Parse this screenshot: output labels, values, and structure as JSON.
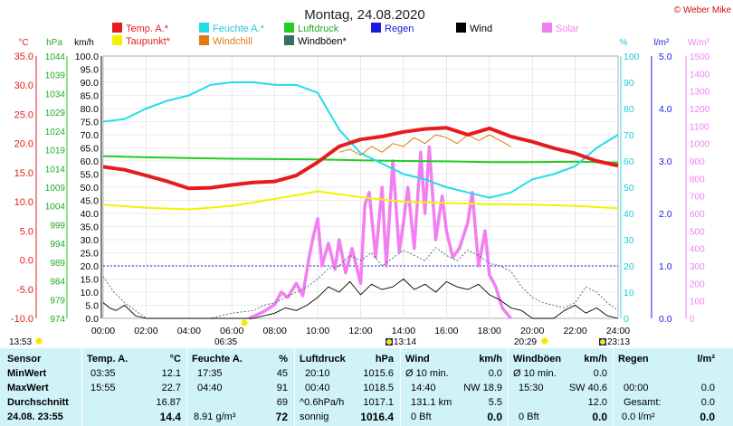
{
  "header": {
    "title": "Montag, 24.08.2020",
    "copyright": "© Weber Mike"
  },
  "legend": [
    {
      "label": "Temp. A.*",
      "color": "#e61c1c"
    },
    {
      "label": "Feuchte A.*",
      "color": "#22dde8"
    },
    {
      "label": "Luftdruck",
      "color": "#22cc22"
    },
    {
      "label": "Regen",
      "color": "#1a1ae0"
    },
    {
      "label": "Wind",
      "color": "#000000"
    },
    {
      "label": "Solar",
      "color": "#f27ff2"
    },
    {
      "label": "Taupunkt*",
      "color": "#f2f200"
    },
    {
      "label": "Windchill",
      "color": "#e07a10"
    },
    {
      "label": "Windböen*",
      "color": "#3a6a6a"
    }
  ],
  "axis_units": {
    "temp": "°C",
    "pressure": "hPa",
    "wind": "km/h",
    "humidity": "%",
    "rain": "l/m²",
    "solar": "W/m²"
  },
  "chart_data": {
    "type": "line",
    "x_ticks": [
      "00:00",
      "02:00",
      "04:00",
      "06:00",
      "08:00",
      "10:00",
      "12:00",
      "14:00",
      "16:00",
      "18:00",
      "20:00",
      "22:00",
      "24:00"
    ],
    "x_range_hours": [
      0,
      24
    ],
    "axes": {
      "temp": {
        "ticks": [
          "35.0",
          "30.0",
          "25.0",
          "20.0",
          "15.0",
          "10.0",
          "5.0",
          "0.0",
          "-5.0",
          "-10.0"
        ],
        "range": [
          -10,
          35
        ]
      },
      "pressure": {
        "ticks": [
          "1044",
          "1039",
          "1034",
          "1029",
          "1024",
          "1019",
          "1014",
          "1009",
          "1004",
          "999",
          "994",
          "989",
          "984",
          "979",
          "974"
        ],
        "range": [
          974,
          1044
        ]
      },
      "wind": {
        "ticks": [
          "100.0",
          "95.0",
          "90.0",
          "85.0",
          "80.0",
          "75.0",
          "70.0",
          "65.0",
          "60.0",
          "55.0",
          "50.0",
          "45.0",
          "40.0",
          "35.0",
          "30.0",
          "25.0",
          "20.0",
          "15.0",
          "10.0",
          "5.0",
          "0.0"
        ],
        "range": [
          0,
          100
        ]
      },
      "humidity": {
        "ticks": [
          "100",
          "90",
          "80",
          "70",
          "60",
          "50",
          "40",
          "30",
          "20",
          "10",
          "0"
        ],
        "range": [
          0,
          100
        ]
      },
      "rain": {
        "ticks": [
          "5.0",
          "4.0",
          "3.0",
          "2.0",
          "1.0",
          "0.0"
        ],
        "range": [
          0,
          5
        ]
      },
      "solar": {
        "ticks": [
          "1500",
          "1400",
          "1300",
          "1200",
          "1100",
          "1000",
          "900",
          "800",
          "700",
          "600",
          "500",
          "400",
          "300",
          "200",
          "100",
          "0"
        ],
        "range": [
          0,
          1500
        ]
      }
    },
    "grid": true,
    "series": [
      {
        "name": "Temp. A.*",
        "axis": "temp",
        "color": "#e61c1c",
        "x": [
          0,
          1,
          2,
          3,
          4,
          5,
          6,
          7,
          8,
          9,
          10,
          11,
          12,
          13,
          14,
          15,
          16,
          17,
          18,
          19,
          20,
          21,
          22,
          23,
          24
        ],
        "y": [
          16.0,
          15.5,
          14.5,
          13.5,
          12.3,
          12.4,
          12.9,
          13.3,
          13.5,
          14.5,
          16.8,
          19.5,
          20.7,
          21.2,
          22.0,
          22.5,
          22.7,
          21.5,
          22.6,
          21.2,
          20.3,
          19.2,
          18.3,
          17.0,
          16.2
        ]
      },
      {
        "name": "Feuchte A.*",
        "axis": "humidity",
        "color": "#22dde8",
        "x": [
          0,
          1,
          2,
          3,
          4,
          5,
          6,
          7,
          8,
          9,
          10,
          11,
          12,
          13,
          14,
          15,
          16,
          17,
          18,
          19,
          20,
          21,
          22,
          23,
          24
        ],
        "y": [
          75,
          76,
          80,
          83,
          85,
          89,
          90,
          90,
          89,
          89,
          86,
          72,
          63,
          59,
          55,
          53,
          50,
          48,
          46,
          48,
          53,
          55,
          58,
          65,
          70
        ]
      },
      {
        "name": "Luftdruck",
        "axis": "pressure",
        "color": "#22cc22",
        "x": [
          0,
          2,
          4,
          6,
          8,
          10,
          12,
          14,
          16,
          18,
          20,
          22,
          24
        ],
        "y": [
          1017.3,
          1017.0,
          1016.8,
          1016.6,
          1016.5,
          1016.4,
          1016.2,
          1016.0,
          1015.9,
          1015.7,
          1015.7,
          1015.8,
          1015.6
        ]
      },
      {
        "name": "Taupunkt*",
        "axis": "temp",
        "color": "#f2f200",
        "x": [
          0,
          2,
          4,
          6,
          8,
          10,
          12,
          14,
          16,
          18,
          20,
          22,
          24
        ],
        "y": [
          9.5,
          9.0,
          8.7,
          9.3,
          10.5,
          11.8,
          10.8,
          10.0,
          9.8,
          9.6,
          9.5,
          9.3,
          8.9
        ]
      },
      {
        "name": "Windchill",
        "axis": "temp",
        "color": "#e07a10",
        "x": [
          11,
          11.5,
          12,
          12.5,
          13,
          13.5,
          14,
          14.5,
          15,
          15.5,
          16,
          16.5,
          17,
          17.5,
          18,
          18.5,
          19
        ],
        "y": [
          18.5,
          19.0,
          18.0,
          19.5,
          18.5,
          20.0,
          19.5,
          21.0,
          20.0,
          21.5,
          21.0,
          20.0,
          21.5,
          20.5,
          21.5,
          20.5,
          19.5
        ]
      },
      {
        "name": "Wind",
        "axis": "wind",
        "color": "#000000",
        "x": [
          0,
          0.3,
          0.6,
          1,
          1.5,
          2,
          4,
          6,
          7,
          7.5,
          8,
          8.5,
          9,
          9.5,
          10,
          10.5,
          11,
          11.5,
          12,
          12.5,
          13,
          13.5,
          14,
          14.5,
          15,
          15.5,
          16,
          16.5,
          17,
          17.5,
          18,
          18.5,
          19,
          19.5,
          20,
          21,
          21.5,
          22,
          22.5,
          23,
          23.5,
          24
        ],
        "y": [
          6,
          4,
          3,
          5,
          1,
          0,
          0,
          0,
          0,
          1,
          2,
          4,
          3,
          5,
          8,
          12,
          10,
          14,
          9,
          13,
          11,
          12,
          15,
          11,
          13,
          10,
          14,
          12,
          11,
          13,
          9,
          7,
          4,
          3,
          0,
          0,
          3,
          5,
          2,
          4,
          1,
          0
        ]
      },
      {
        "name": "Windböen*",
        "axis": "wind",
        "color": "#3a6a6a",
        "x": [
          0,
          0.5,
          1,
          1.5,
          2,
          3,
          4,
          5,
          6,
          7,
          7.5,
          8,
          8.5,
          9,
          9.5,
          10,
          10.5,
          11,
          11.5,
          12,
          12.5,
          13,
          13.5,
          14,
          14.5,
          15,
          15.5,
          16,
          16.5,
          17,
          17.5,
          18,
          18.5,
          19,
          19.5,
          20,
          20.5,
          21,
          21.5,
          22,
          22.5,
          23,
          23.5,
          24
        ],
        "y": [
          16,
          10,
          6,
          3,
          0,
          0,
          0,
          0,
          2,
          3,
          5,
          6,
          8,
          10,
          12,
          15,
          19,
          20,
          24,
          22,
          25,
          20,
          23,
          26,
          24,
          22,
          27,
          24,
          22,
          26,
          24,
          21,
          20,
          18,
          12,
          8,
          6,
          5,
          4,
          6,
          12,
          10,
          6,
          3
        ]
      },
      {
        "name": "Solar",
        "axis": "solar",
        "color": "#f27ff2",
        "x": [
          6.8,
          7.5,
          8,
          8.3,
          8.6,
          9,
          9.3,
          9.6,
          9.8,
          10,
          10.2,
          10.5,
          10.8,
          11,
          11.3,
          11.6,
          12,
          12.2,
          12.4,
          12.7,
          13,
          13.2,
          13.5,
          13.8,
          14,
          14.2,
          14.5,
          14.8,
          15,
          15.2,
          15.5,
          15.8,
          16,
          16.3,
          16.6,
          17,
          17.2,
          17.5,
          17.8,
          18,
          18.3,
          18.6,
          19
        ],
        "y": [
          0,
          40,
          80,
          150,
          120,
          200,
          130,
          350,
          470,
          570,
          300,
          430,
          280,
          450,
          260,
          400,
          200,
          650,
          720,
          350,
          750,
          300,
          900,
          380,
          550,
          750,
          400,
          950,
          600,
          980,
          450,
          700,
          500,
          350,
          400,
          550,
          720,
          300,
          500,
          250,
          180,
          60,
          0
        ]
      }
    ],
    "horizontal_line": {
      "axis": "rain",
      "value": 1.0,
      "color": "#1a1ae0"
    }
  },
  "sun": {
    "sunrise": "06:35",
    "sunset": "20:29",
    "moonrise": "13:14",
    "moonset": "23:13",
    "daylength": "13:53"
  },
  "table": {
    "rows": [
      "Sensor",
      "MinWert",
      "MaxWert",
      "Durchschnitt",
      "24.08. 23:55"
    ],
    "temp": {
      "header": "Temp. A.",
      "unit": "°C",
      "min_time": "03:35",
      "min": "12.1",
      "max_time": "15:55",
      "max": "22.7",
      "avg": "16.87",
      "current": "14.4"
    },
    "humidity": {
      "header": "Feuchte A.",
      "unit": "%",
      "min_time": "17:35",
      "min": "45",
      "max_time": "04:40",
      "max": "91",
      "avg": "69",
      "abs": "8.91 g/m³",
      "current": "72"
    },
    "pressure": {
      "header": "Luftdruck",
      "unit": "hPa",
      "min_time": "20:10",
      "min": "1015.6",
      "max_time": "00:40",
      "max": "1018.5",
      "trend_label": "^0.6hPa/h",
      "avg": "1017.1",
      "state": "sonnig",
      "current": "1016.4"
    },
    "wind": {
      "header": "Wind",
      "unit": "km/h",
      "avg_label": "Ø 10 min.",
      "avg": "0.0",
      "max_time": "14:40",
      "max_dir": "NW 18.9",
      "distance": "131.1 km",
      "dist_val": "5.5",
      "bft": "0 Bft",
      "current": "0.0"
    },
    "gusts": {
      "header": "Windböen",
      "unit": "km/h",
      "avg_label": "Ø 10 min.",
      "avg": "0.0",
      "max_time": "15:30",
      "max_dir": "SW 40.6",
      "avg2": "12.0",
      "bft": "0 Bft",
      "current": "0.0"
    },
    "rain": {
      "header": "Regen",
      "unit": "l/m²",
      "max_time": "00:00",
      "max": "0.0",
      "total_label": "Gesamt:",
      "total": "0.0",
      "rate": "0.0 l/m²",
      "current": "0.0"
    }
  }
}
